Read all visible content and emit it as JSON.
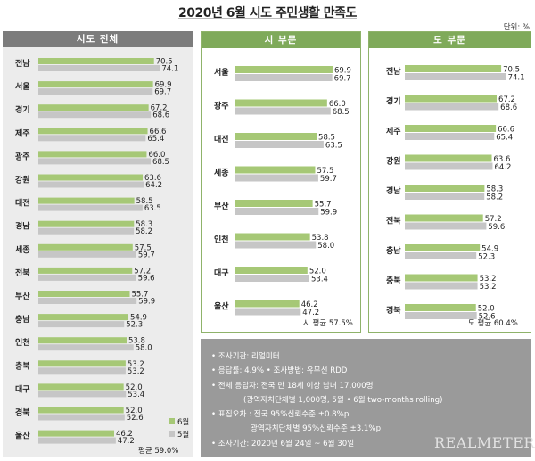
{
  "title": "2020년 6월 시도 주민생활 만족도",
  "unit": "단위: %",
  "legend": {
    "june": "6월",
    "may": "5월"
  },
  "colors": {
    "june": "#a6c876",
    "may": "#c6c6c6"
  },
  "notes": [
    "• 조사기관: 리얼미터",
    "• 응답률: 4.9% • 조사방법: 유무선 RDD",
    "• 전체 응답자: 전국 만 18세 이상 남녀 17,000명",
    "(광역자치단체별 1,000명, 5월 • 6월 two-months rolling)",
    "• 표집오차 : 전국 95%신뢰수준 ±0.8%p",
    "광역자치단체별 95%신뢰수준 ±3.1%p",
    "• 조사기간: 2020년 6월 24일 ~ 6월 30일"
  ],
  "logo": "REALMETER",
  "chart_data": [
    {
      "type": "bar",
      "title": "시도 전체",
      "average_label": "평균 59.0%",
      "categories": [
        "전남",
        "서울",
        "경기",
        "제주",
        "광주",
        "강원",
        "대전",
        "경남",
        "세종",
        "전북",
        "부산",
        "충남",
        "인천",
        "충북",
        "대구",
        "경북",
        "울산"
      ],
      "series": [
        {
          "name": "6월",
          "values": [
            70.5,
            69.9,
            67.2,
            66.6,
            66.0,
            63.6,
            58.5,
            58.3,
            57.5,
            57.2,
            55.7,
            54.9,
            53.8,
            53.2,
            52.0,
            52.0,
            46.2
          ]
        },
        {
          "name": "5월",
          "values": [
            74.1,
            69.7,
            68.6,
            65.4,
            68.5,
            64.2,
            63.5,
            58.2,
            59.7,
            59.6,
            59.9,
            52.3,
            58.0,
            53.2,
            53.4,
            52.6,
            47.2
          ]
        }
      ]
    },
    {
      "type": "bar",
      "title": "시 부문",
      "average_label": "시 평균 57.5%",
      "categories": [
        "서울",
        "광주",
        "대전",
        "세종",
        "부산",
        "인천",
        "대구",
        "울산"
      ],
      "series": [
        {
          "name": "6월",
          "values": [
            69.9,
            66.0,
            58.5,
            57.5,
            55.7,
            53.8,
            52.0,
            46.2
          ]
        },
        {
          "name": "5월",
          "values": [
            69.7,
            68.5,
            63.5,
            59.7,
            59.9,
            58.0,
            53.4,
            47.2
          ]
        }
      ]
    },
    {
      "type": "bar",
      "title": "도 부문",
      "average_label": "도 평균 60.4%",
      "categories": [
        "전남",
        "경기",
        "제주",
        "강원",
        "경남",
        "전북",
        "충남",
        "충북",
        "경북"
      ],
      "series": [
        {
          "name": "6월",
          "values": [
            70.5,
            67.2,
            66.6,
            63.6,
            58.3,
            57.2,
            54.9,
            53.2,
            52.0
          ]
        },
        {
          "name": "5월",
          "values": [
            74.1,
            68.6,
            65.4,
            64.2,
            58.2,
            59.6,
            52.3,
            53.2,
            52.6
          ]
        }
      ]
    }
  ]
}
